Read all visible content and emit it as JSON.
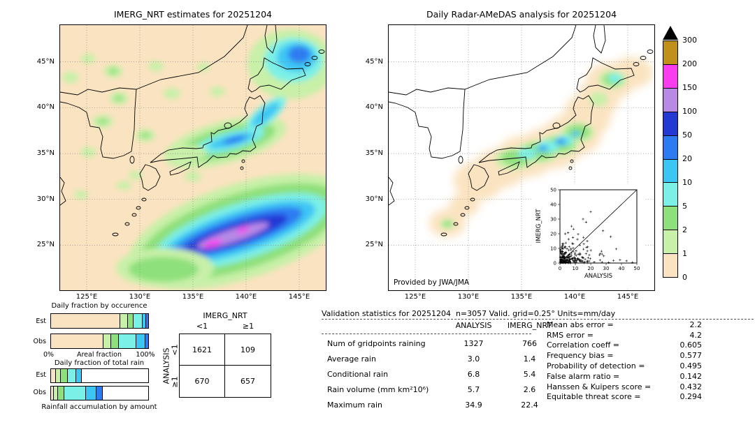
{
  "palette": {
    "c0": "#fae3c0",
    "c1": "#c8f0a8",
    "c2": "#8ee07c",
    "c3": "#7bf0e6",
    "c4": "#3cc6f4",
    "c5": "#2d7bf2",
    "c6": "#2438d4",
    "c7": "#b88ae6",
    "c8": "#f93cf0",
    "c9": "#c09018",
    "white": "#ffffff",
    "over": "#000000"
  },
  "left_map": {
    "title": "IMERG_NRT estimates for 20251204"
  },
  "right_map": {
    "title": "Daily Radar-AMeDAS analysis for 20251204",
    "credit": "Provided by JWA/JMA"
  },
  "axes": {
    "lat_labels": [
      "45°N",
      "40°N",
      "35°N",
      "30°N",
      "25°N"
    ],
    "lon_labels": [
      "125°E",
      "130°E",
      "135°E",
      "140°E",
      "145°E"
    ]
  },
  "colorbar": {
    "labels": [
      "300",
      "200",
      "150",
      "100",
      "50",
      "20",
      "10",
      "5",
      "2",
      "1",
      "0"
    ],
    "segment_colors": [
      "c9",
      "c8",
      "c7",
      "c6",
      "c5",
      "c4",
      "c3",
      "c2",
      "c1",
      "c0"
    ]
  },
  "inset": {
    "xlabel": "ANALYSIS",
    "ylabel": "IMERG_NRT",
    "ticks": [
      "0",
      "10",
      "20",
      "30",
      "40",
      "50"
    ]
  },
  "fractions": {
    "occurrence_title": "Daily fraction by occurence",
    "total_title": "Daily fraction of total rain",
    "accum_label": "Rainfall accumulation by amount",
    "axis_left": "0%",
    "axis_mid": "Areal fraction",
    "axis_right": "100%",
    "row_labels": [
      "Est",
      "Obs"
    ],
    "occurrence": {
      "est": [
        [
          "c0",
          71
        ],
        [
          "c1",
          8
        ],
        [
          "c2",
          6
        ],
        [
          "c3",
          9
        ],
        [
          "c4",
          4
        ],
        [
          "c5",
          2
        ]
      ],
      "obs": [
        [
          "c0",
          54
        ],
        [
          "c1",
          8
        ],
        [
          "c2",
          8
        ],
        [
          "c3",
          18
        ],
        [
          "c4",
          9
        ],
        [
          "c5",
          3
        ]
      ]
    },
    "total": {
      "est": [
        [
          "c0",
          5
        ],
        [
          "c1",
          5
        ],
        [
          "c2",
          7
        ],
        [
          "c3",
          9
        ],
        [
          "c4",
          6
        ],
        [
          "white",
          68
        ]
      ],
      "obs": [
        [
          "c0",
          3
        ],
        [
          "c1",
          4
        ],
        [
          "c2",
          7
        ],
        [
          "c3",
          22
        ],
        [
          "c4",
          11
        ],
        [
          "c5",
          6
        ],
        [
          "white",
          47
        ]
      ]
    }
  },
  "contingency": {
    "col_title": "IMERG_NRT",
    "row_title": "ANALYSIS",
    "col_labels": [
      "<1",
      "≥1"
    ],
    "row_labels": [
      "<1",
      "≥1"
    ],
    "cells": [
      [
        "1621",
        "109"
      ],
      [
        "670",
        "657"
      ]
    ]
  },
  "validation": {
    "title": "Validation statistics for 20251204  n=3057 Valid. grid=0.25° Units=mm/day",
    "col_headers": [
      "ANALYSIS",
      "IMERG_NRT"
    ],
    "rows": [
      {
        "label": "Num of gridpoints raining",
        "analysis": "1327",
        "imerg": "766"
      },
      {
        "label": "Average rain",
        "analysis": "3.0",
        "imerg": "1.4"
      },
      {
        "label": "Conditional rain",
        "analysis": "6.8",
        "imerg": "5.4"
      },
      {
        "label": "Rain volume (mm km²10⁶)",
        "analysis": "5.7",
        "imerg": "2.6"
      },
      {
        "label": "Maximum rain",
        "analysis": "34.9",
        "imerg": "22.4"
      }
    ],
    "stats": [
      {
        "label": "Mean abs error = ",
        "value": "2.2"
      },
      {
        "label": "RMS error = ",
        "value": "4.2"
      },
      {
        "label": "Correlation coeff = ",
        "value": "0.605"
      },
      {
        "label": "Frequency bias = ",
        "value": "0.577"
      },
      {
        "label": "Probability of detection = ",
        "value": "0.495"
      },
      {
        "label": "False alarm ratio = ",
        "value": "0.142"
      },
      {
        "label": "Hanssen & Kuipers score = ",
        "value": "0.432"
      },
      {
        "label": "Equitable threat score = ",
        "value": "0.294"
      }
    ]
  },
  "chart_data": [
    {
      "type": "heatmap",
      "title": "IMERG_NRT estimates for 20251204",
      "xlabel": "longitude",
      "ylabel": "latitude",
      "x_ticks": [
        "125°E",
        "130°E",
        "135°E",
        "140°E",
        "145°E"
      ],
      "y_ticks": [
        "45°N",
        "40°N",
        "35°N",
        "30°N",
        "25°N"
      ],
      "units": "mm/day",
      "colorbar_levels": [
        0,
        1,
        2,
        5,
        10,
        20,
        50,
        100,
        150,
        200,
        300
      ],
      "note": "Precipitation over Japan region: rain band over central Honshu (up to 20-50), cyan/blue area northeast of Hokkaido, and a large SW-NE oriented oceanic storm band southeast of Japan with cores exceeding 100-200 (purple/magenta)."
    },
    {
      "type": "heatmap",
      "title": "Daily Radar-AMeDAS analysis for 20251204",
      "xlabel": "longitude",
      "ylabel": "latitude",
      "x_ticks": [
        "125°E",
        "130°E",
        "135°E",
        "140°E",
        "145°E"
      ],
      "y_ticks": [
        "45°N",
        "40°N",
        "35°N",
        "30°N",
        "25°N"
      ],
      "units": "mm/day",
      "colorbar_levels": [
        0,
        1,
        2,
        5,
        10,
        20,
        50,
        100,
        150,
        200,
        300
      ],
      "note": "Radar coverage only along the archipelago: tan (0) corridor over Japan, green-cyan rain band along southern/central Honshu with blue cores (20-50), cyan patch over Hokkaido, small patches near Okinawa."
    },
    {
      "type": "scatter",
      "xlabel": "ANALYSIS",
      "ylabel": "IMERG_NRT",
      "xlim": [
        0,
        50
      ],
      "ylim": [
        0,
        50
      ],
      "ticks": [
        0,
        10,
        20,
        30,
        40,
        50
      ],
      "note": "Dense cluster of + markers mostly below 25 mm/day on both axes with 1:1 diagonal reference line."
    },
    {
      "type": "table",
      "title": "Contingency table (ANALYSIS rows × IMERG_NRT columns)",
      "columns": [
        "",
        "<1",
        "≥1"
      ],
      "rows": [
        [
          "<1",
          1621,
          109
        ],
        [
          "≥1",
          670,
          657
        ]
      ]
    },
    {
      "type": "table",
      "title": "Validation statistics for 20251204  n=3057 Valid. grid=0.25° Units=mm/day",
      "columns": [
        "metric",
        "ANALYSIS",
        "IMERG_NRT"
      ],
      "rows": [
        [
          "Num of gridpoints raining",
          1327,
          766
        ],
        [
          "Average rain",
          3.0,
          1.4
        ],
        [
          "Conditional rain",
          6.8,
          5.4
        ],
        [
          "Rain volume (mm km²10⁶)",
          5.7,
          2.6
        ],
        [
          "Maximum rain",
          34.9,
          22.4
        ]
      ]
    },
    {
      "type": "table",
      "title": "Skill scores",
      "rows": [
        [
          "Mean abs error",
          2.2
        ],
        [
          "RMS error",
          4.2
        ],
        [
          "Correlation coeff",
          0.605
        ],
        [
          "Frequency bias",
          0.577
        ],
        [
          "Probability of detection",
          0.495
        ],
        [
          "False alarm ratio",
          0.142
        ],
        [
          "Hanssen & Kuipers score",
          0.432
        ],
        [
          "Equitable threat score",
          0.294
        ]
      ]
    },
    {
      "type": "bar",
      "title": "Daily fraction by occurence / of total rain (stacked horizontal bars, Est & Obs)",
      "categories": [
        "occurrence Est",
        "occurrence Obs",
        "total Est",
        "total Obs"
      ],
      "series_note": "Segments colored by rainfall amount class (same palette as colorbar), percentages approximate",
      "values": {
        "occurrence_est": [
          71,
          8,
          6,
          9,
          4,
          2
        ],
        "occurrence_obs": [
          54,
          8,
          8,
          18,
          9,
          3
        ],
        "total_est": [
          5,
          5,
          7,
          9,
          6,
          68
        ],
        "total_obs": [
          3,
          4,
          7,
          22,
          11,
          6,
          47
        ]
      }
    }
  ]
}
